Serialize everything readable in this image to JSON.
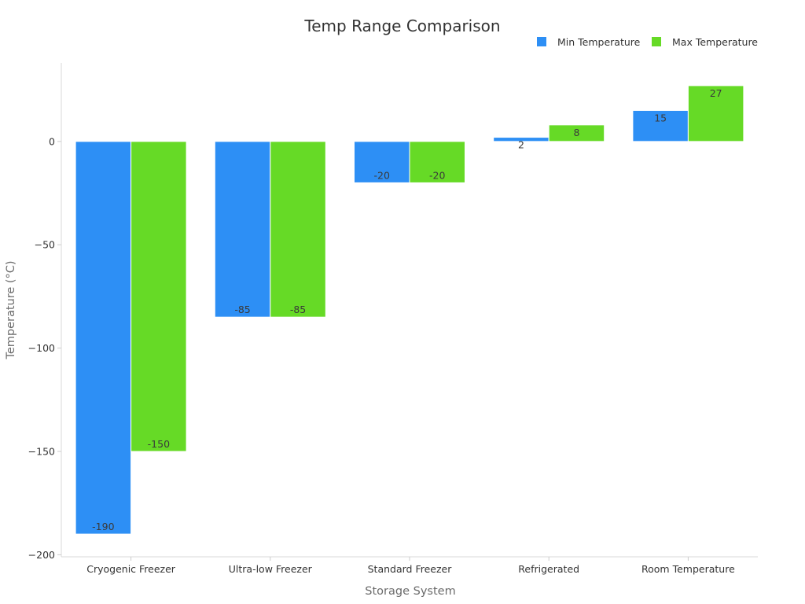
{
  "chart_data": {
    "type": "bar",
    "title": "Temp Range Comparison",
    "xlabel": "Storage System",
    "ylabel": "Temperature (°C)",
    "categories": [
      "Cryogenic Freezer",
      "Ultra-low Freezer",
      "Standard Freezer",
      "Refrigerated",
      "Room Temperature"
    ],
    "series": [
      {
        "name": "Min Temperature",
        "color": "#2d8ff5",
        "values": [
          -190,
          -85,
          -20,
          2,
          15
        ]
      },
      {
        "name": "Max Temperature",
        "color": "#66da26",
        "values": [
          -150,
          -85,
          -20,
          8,
          27
        ]
      }
    ],
    "yticks": [
      0,
      -50,
      -100,
      -150,
      -200
    ],
    "ylim": [
      -201,
      38
    ],
    "grid": false,
    "legend_position": "top-right",
    "data_labels": true
  }
}
